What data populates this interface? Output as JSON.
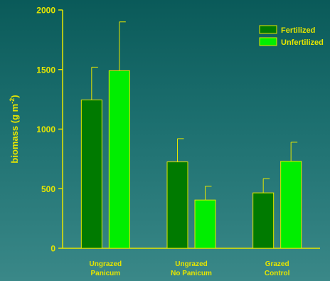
{
  "chart_data": {
    "type": "bar",
    "ylabel": "biomass (g m",
    "ylabel_superscript": "-2",
    "ylabel_suffix": ")",
    "ylim": [
      0,
      2000
    ],
    "yticks": [
      {
        "value": 0,
        "label": "0"
      },
      {
        "value": 500,
        "label": "500"
      },
      {
        "value": 1000,
        "label": "1000"
      },
      {
        "value": 1500,
        "label": "1500"
      },
      {
        "value": 2000,
        "label": "2000"
      }
    ],
    "categories": [
      {
        "line1": "Ungrazed",
        "line2": "Panicum"
      },
      {
        "line1": "Ungrazed",
        "line2": "No Panicum"
      },
      {
        "line1": "Grazed",
        "line2": "Control"
      }
    ],
    "series": [
      {
        "name": "Fertilized",
        "color": "#007a00",
        "values": [
          1245,
          725,
          465
        ],
        "errors": [
          275,
          195,
          120
        ]
      },
      {
        "name": "Unfertilized",
        "color": "#00ee00",
        "values": [
          1490,
          405,
          730
        ],
        "errors": [
          410,
          115,
          160
        ]
      }
    ],
    "legend_position": "top-right",
    "grid": false,
    "axis_color": "#e6e600",
    "text_color": "#e6e600"
  }
}
